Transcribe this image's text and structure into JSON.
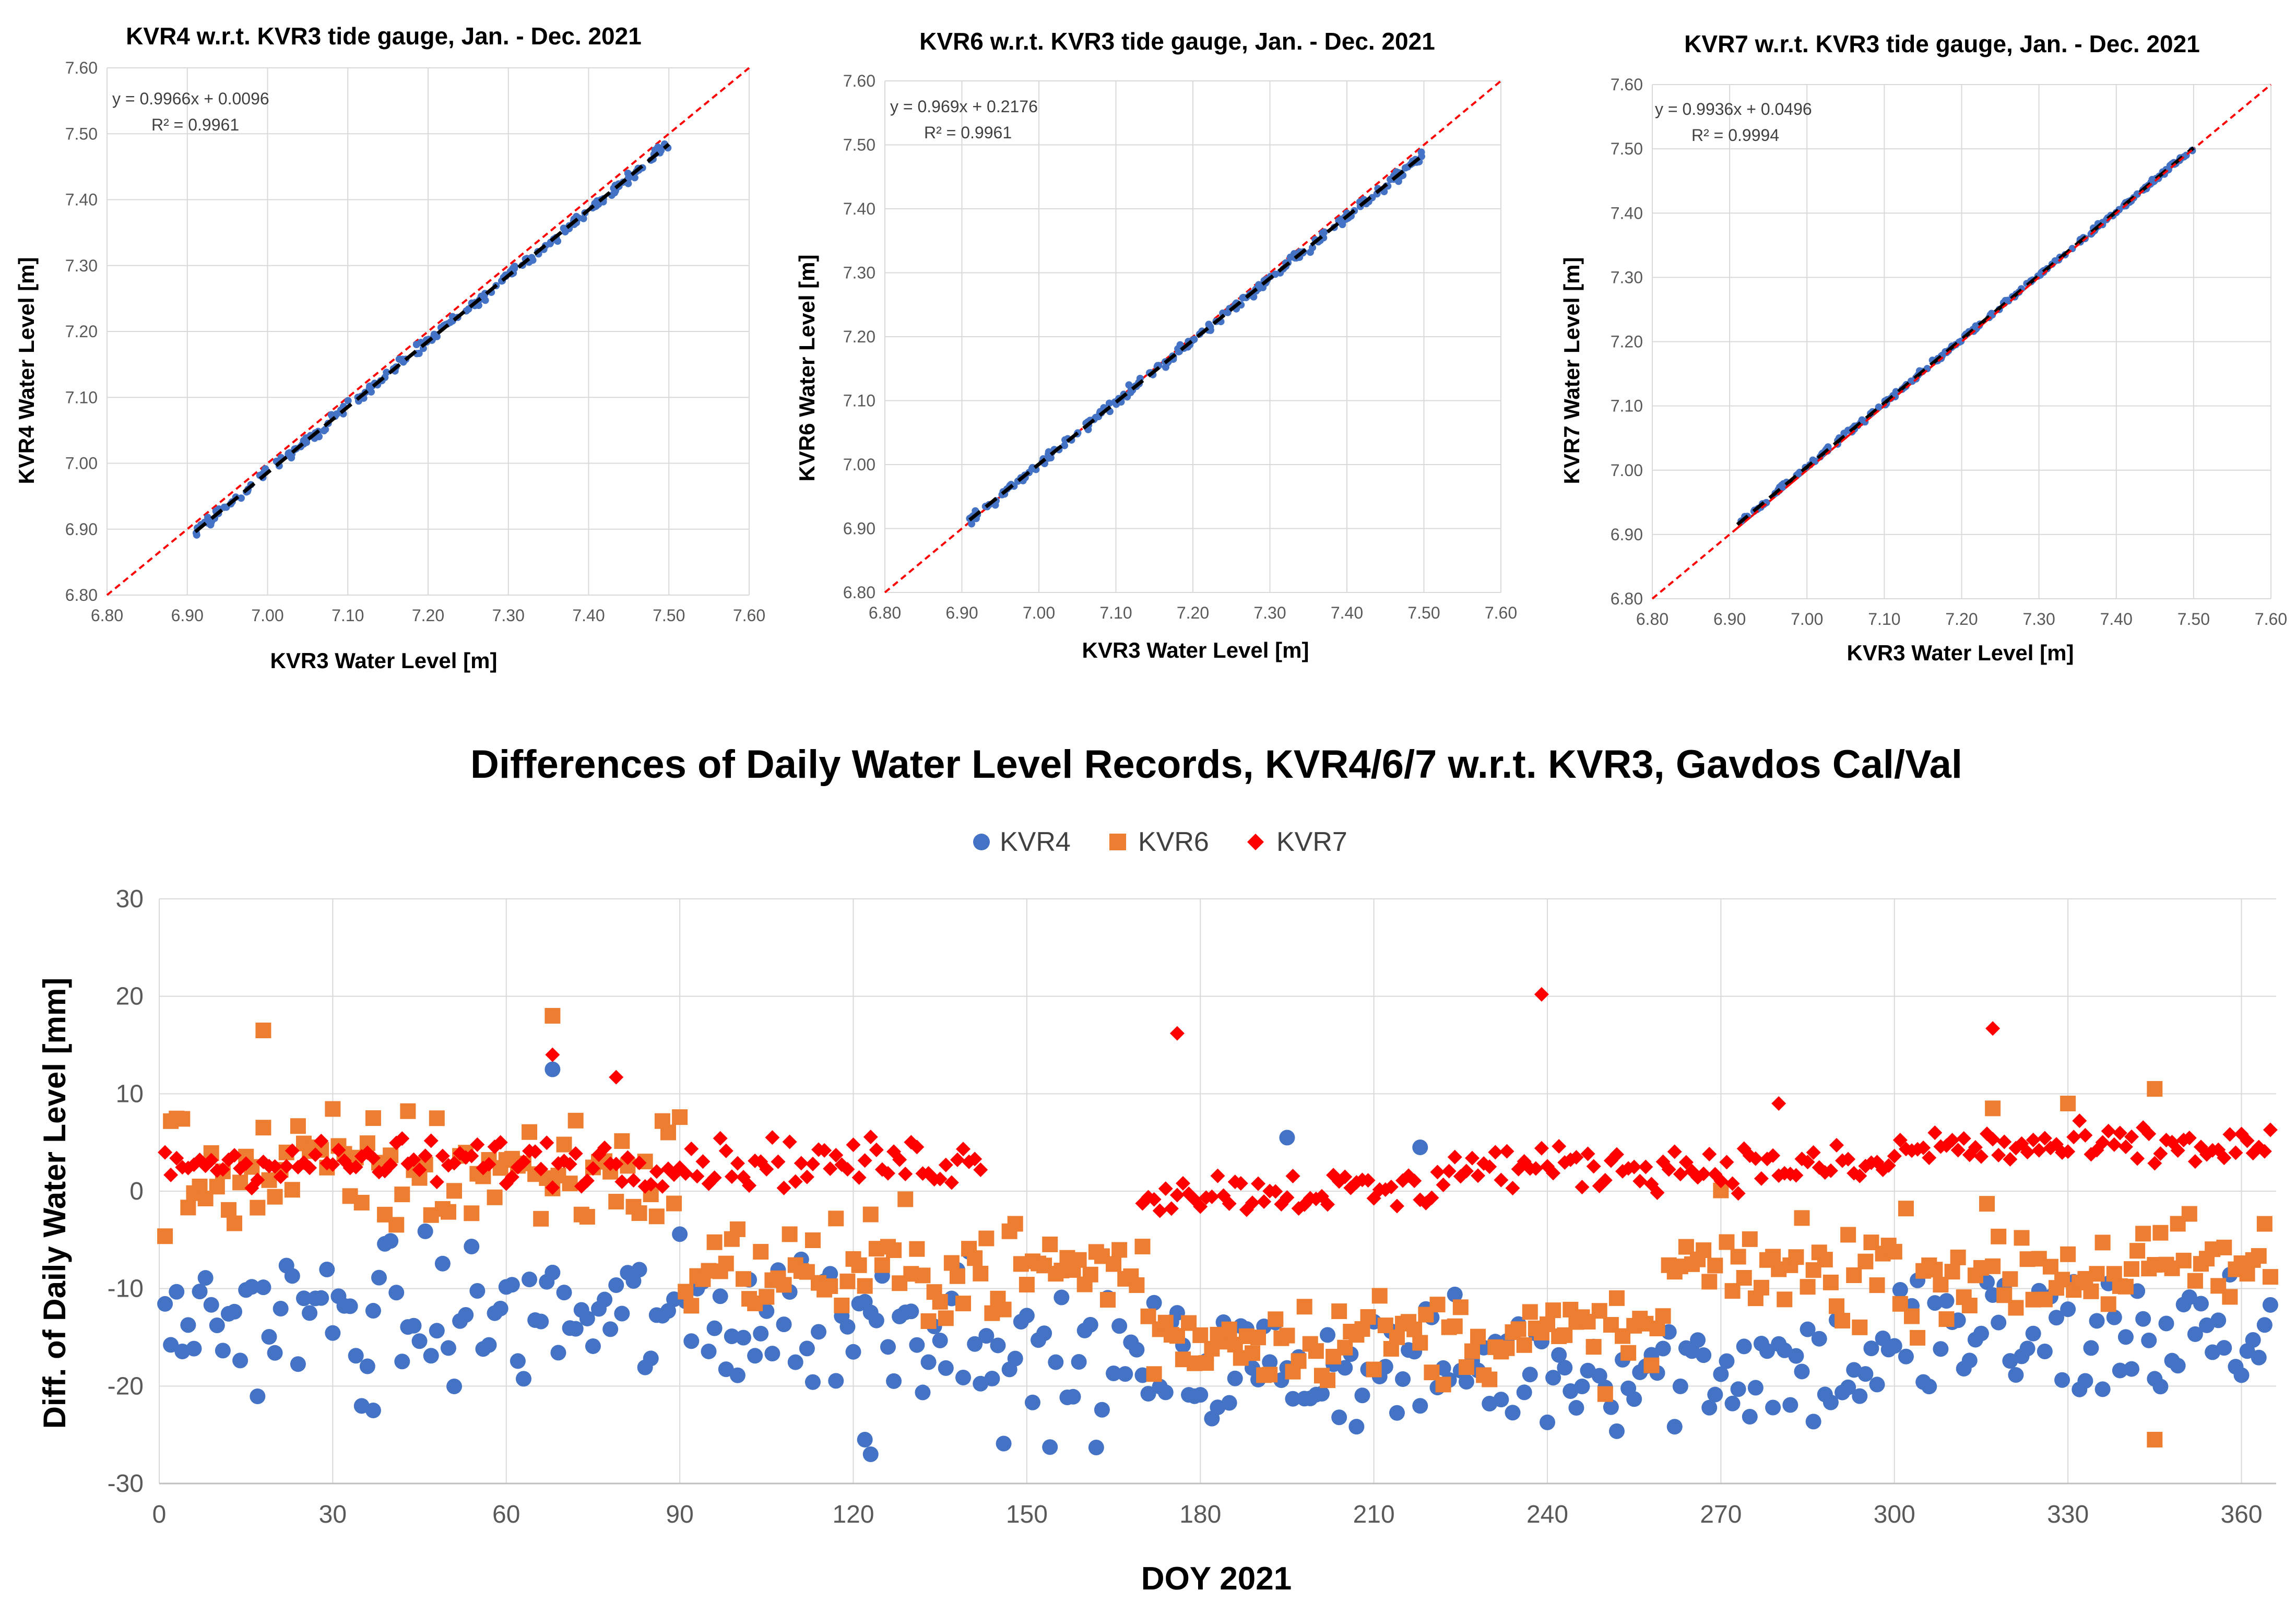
{
  "scatter_panels": [
    {
      "title": "KVR4 w.r.t. KVR3  tide gauge, Jan. - Dec. 2021",
      "xlabel": "KVR3 Water Level [m]",
      "ylabel": "KVR4 Water Level [m]",
      "equation": "y = 0.9966x + 0.0096",
      "r2": "R² = 0.9961",
      "slope": 0.9966,
      "intercept": 0.0096
    },
    {
      "title": "KVR6 w.r.t. KVR3  tide gauge, Jan. - Dec. 2021",
      "xlabel": "KVR3 Water Level [m]",
      "ylabel": "KVR6  Water Level [m]",
      "equation": "y = 0.969x + 0.2176",
      "r2": "R² = 0.9961",
      "slope": 0.969,
      "intercept": 0.2176
    },
    {
      "title": "KVR7 w.r.t. KVR3  tide gauge, Jan. - Dec. 2021",
      "xlabel": "KVR3 Water Level [m]",
      "ylabel": "KVR7 Water Level [m]",
      "equation": "y = 0.9936x + 0.0496",
      "r2": "R² = 0.9994",
      "slope": 0.9936,
      "intercept": 0.0496
    }
  ],
  "bottom": {
    "title": "Differences of Daily Water Level Records, KVR4/6/7 w.r.t. KVR3, Gavdos Cal/Val",
    "xlabel": "DOY 2021",
    "ylabel": "Diff. of Daily Water Level [mm]",
    "legend": [
      "KVR4",
      "KVR6",
      "KVR7"
    ]
  },
  "colors": {
    "kvr4": "#4472C4",
    "kvr6": "#ED7D31",
    "kvr7": "#FF0000",
    "trend": "#000000",
    "one_to_one": "#FF0000",
    "grid": "#D9D9D9",
    "axis_text": "#595959"
  },
  "chart_data": [
    {
      "type": "scatter",
      "title": "KVR4 w.r.t. KVR3  tide gauge, Jan. - Dec. 2021",
      "xlim": [
        6.8,
        7.6
      ],
      "ylim": [
        6.8,
        7.6
      ],
      "xticks": [
        "6.80",
        "6.90",
        "7.00",
        "7.10",
        "7.20",
        "7.30",
        "7.40",
        "7.50",
        "7.60"
      ],
      "yticks": [
        "6.80",
        "6.90",
        "7.00",
        "7.10",
        "7.20",
        "7.30",
        "7.40",
        "7.50",
        "7.60"
      ],
      "data_x_range": [
        6.91,
        7.5
      ],
      "trendline": {
        "slope": 0.9966,
        "intercept": 0.0096
      }
    },
    {
      "type": "scatter",
      "title": "KVR6 w.r.t. KVR3  tide gauge, Jan. - Dec. 2021",
      "xlim": [
        6.8,
        7.6
      ],
      "ylim": [
        6.8,
        7.6
      ],
      "xticks": [
        "6.80",
        "6.90",
        "7.00",
        "7.10",
        "7.20",
        "7.30",
        "7.40",
        "7.50",
        "7.60"
      ],
      "yticks": [
        "6.80",
        "6.90",
        "7.00",
        "7.10",
        "7.20",
        "7.30",
        "7.40",
        "7.50",
        "7.60"
      ],
      "data_x_range": [
        6.91,
        7.5
      ],
      "trendline": {
        "slope": 0.969,
        "intercept": 0.2176
      }
    },
    {
      "type": "scatter",
      "title": "KVR7 w.r.t. KVR3  tide gauge, Jan. - Dec. 2021",
      "xlim": [
        6.8,
        7.6
      ],
      "ylim": [
        6.8,
        7.6
      ],
      "xticks": [
        "6.80",
        "6.90",
        "7.00",
        "7.10",
        "7.20",
        "7.30",
        "7.40",
        "7.50",
        "7.60"
      ],
      "yticks": [
        "6.80",
        "6.90",
        "7.00",
        "7.10",
        "7.20",
        "7.30",
        "7.40",
        "7.50",
        "7.60"
      ],
      "data_x_range": [
        6.91,
        7.5
      ],
      "trendline": {
        "slope": 0.9936,
        "intercept": 0.0496
      }
    },
    {
      "type": "scatter",
      "title": "Differences of Daily Water Level Records, KVR4/6/7 w.r.t. KVR3, Gavdos Cal/Val",
      "xlabel": "DOY 2021",
      "ylabel": "Diff. of Daily Water Level [mm]",
      "xlim": [
        0,
        366
      ],
      "ylim": [
        -30,
        30
      ],
      "xticks": [
        "0",
        "30",
        "60",
        "90",
        "120",
        "150",
        "180",
        "210",
        "240",
        "270",
        "300",
        "330",
        "360"
      ],
      "yticks": [
        "-30",
        "-20",
        "-10",
        "0",
        "10",
        "20",
        "30"
      ],
      "series": [
        {
          "name": "KVR4",
          "marker": "circle",
          "segments": [
            {
              "from": 1,
              "to": 145,
              "mean": -13,
              "spread": 7
            },
            {
              "from": 146,
              "to": 300,
              "mean": -18,
              "spread": 6
            },
            {
              "from": 301,
              "to": 365,
              "mean": -15,
              "spread": 7
            }
          ],
          "outliers": [
            [
              68,
              12.5
            ],
            [
              123,
              -27
            ],
            [
              195,
              5.5
            ],
            [
              218,
              4.5
            ],
            [
              37,
              -22.5
            ],
            [
              122,
              -25.5
            ]
          ]
        },
        {
          "name": "KVR6",
          "marker": "square",
          "segments": [
            {
              "from": 1,
              "to": 90,
              "mean": 2,
              "spread": 6
            },
            {
              "from": 91,
              "to": 170,
              "mean": -8,
              "spread": 5
            },
            {
              "from": 171,
              "to": 260,
              "mean": -15,
              "spread": 4
            },
            {
              "from": 261,
              "to": 365,
              "mean": -8,
              "spread": 5
            }
          ],
          "outliers": [
            [
              18,
              16.5
            ],
            [
              68,
              18
            ],
            [
              345,
              -25.5
            ],
            [
              345,
              10.5
            ],
            [
              330,
              9
            ],
            [
              317,
              8.5
            ]
          ]
        },
        {
          "name": "KVR7",
          "marker": "diamond",
          "segments": [
            {
              "from": 1,
              "to": 142,
              "mean": 3,
              "spread": 2.2
            },
            {
              "from": 170,
              "to": 220,
              "mean": 0,
              "spread": 2
            },
            {
              "from": 221,
              "to": 300,
              "mean": 2.5,
              "spread": 2
            },
            {
              "from": 301,
              "to": 365,
              "mean": 4.5,
              "spread": 2
            }
          ],
          "outliers": [
            [
              176,
              16.2
            ],
            [
              239,
              20.2
            ],
            [
              317,
              16.7
            ],
            [
              68,
              14
            ],
            [
              79,
              11.7
            ],
            [
              280,
              9
            ]
          ]
        }
      ]
    }
  ]
}
